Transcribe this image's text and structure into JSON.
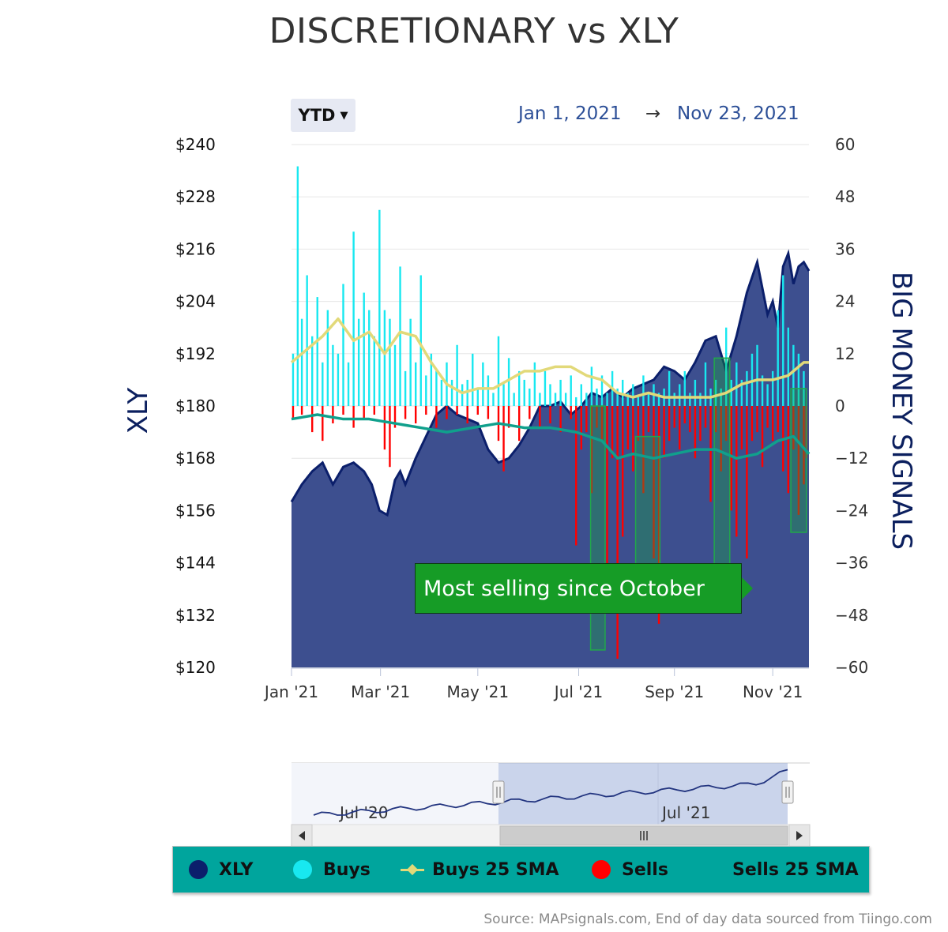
{
  "title": "DISCRETIONARY vs XLY",
  "range_selector": {
    "label": "YTD"
  },
  "date_range": {
    "from": "Jan 1, 2021",
    "arrow": "→",
    "to": "Nov 23, 2021"
  },
  "callout": {
    "text": "Most selling since October"
  },
  "navigator": {
    "labels": [
      "Jul '20",
      "Jul '21"
    ]
  },
  "legend": [
    {
      "label": "XLY",
      "color": "#0b1f6b"
    },
    {
      "label": "Buys",
      "color": "#18e8f0"
    },
    {
      "label": "Buys 25 SMA",
      "color": "#e2d979"
    },
    {
      "label": "Sells",
      "color": "#ff0000"
    },
    {
      "label": "Sells 25 SMA",
      "color": "#10a08c"
    }
  ],
  "source": "Source: MAPsignals.com, End of day data sourced from Tiingo.com",
  "chart_data": {
    "type": "area",
    "title": "DISCRETIONARY vs XLY",
    "x_ticks": [
      "Jan '21",
      "Mar '21",
      "May '21",
      "Jul '21",
      "Sep '21",
      "Nov '21"
    ],
    "left_axis": {
      "label": "XLY",
      "ticks": [
        "$240",
        "$228",
        "$216",
        "$204",
        "$192",
        "$180",
        "$168",
        "$156",
        "$144",
        "$132",
        "$120"
      ],
      "range": [
        120,
        240
      ]
    },
    "right_axis": {
      "label": "BIG MONEY SIGNALS",
      "ticks": [
        "60",
        "48",
        "36",
        "24",
        "12",
        "0",
        "−12",
        "−24",
        "−36",
        "−48",
        "−60"
      ],
      "range": [
        -60,
        60
      ]
    },
    "xly_price": {
      "name": "XLY",
      "x": [
        0,
        0.02,
        0.04,
        0.06,
        0.08,
        0.1,
        0.12,
        0.14,
        0.155,
        0.17,
        0.185,
        0.2,
        0.21,
        0.22,
        0.24,
        0.26,
        0.28,
        0.3,
        0.32,
        0.34,
        0.36,
        0.38,
        0.4,
        0.42,
        0.44,
        0.46,
        0.48,
        0.5,
        0.52,
        0.54,
        0.56,
        0.58,
        0.6,
        0.62,
        0.64,
        0.66,
        0.68,
        0.7,
        0.72,
        0.74,
        0.76,
        0.78,
        0.8,
        0.82,
        0.84,
        0.86,
        0.88,
        0.9,
        0.91,
        0.92,
        0.93,
        0.94,
        0.95,
        0.96,
        0.97,
        0.98,
        0.99,
        1.0
      ],
      "values": [
        158,
        162,
        165,
        167,
        162,
        166,
        167,
        165,
        162,
        156,
        155,
        163,
        165,
        162,
        168,
        173,
        178,
        180,
        178,
        177,
        176,
        170,
        167,
        168,
        171,
        175,
        180,
        180,
        181,
        178,
        180,
        183,
        182,
        184,
        182,
        184,
        185,
        186,
        189,
        188,
        186,
        190,
        195,
        196,
        188,
        196,
        206,
        213,
        207,
        201,
        204,
        198,
        212,
        215,
        208,
        212,
        213,
        211
      ]
    },
    "buys_25_sma": {
      "name": "Buys 25 SMA",
      "x": [
        0,
        0.03,
        0.06,
        0.09,
        0.12,
        0.15,
        0.18,
        0.21,
        0.24,
        0.27,
        0.3,
        0.33,
        0.36,
        0.39,
        0.42,
        0.45,
        0.48,
        0.51,
        0.54,
        0.57,
        0.6,
        0.63,
        0.66,
        0.69,
        0.72,
        0.75,
        0.78,
        0.81,
        0.84,
        0.87,
        0.9,
        0.93,
        0.96,
        0.99,
        1.0
      ],
      "values": [
        10,
        13,
        16,
        20,
        15,
        17,
        12,
        17,
        16,
        10,
        5,
        3,
        4,
        4,
        6,
        8,
        8,
        9,
        9,
        7,
        6,
        3,
        2,
        3,
        2,
        2,
        2,
        2,
        3,
        5,
        6,
        6,
        7,
        10,
        10
      ]
    },
    "sells_25_sma": {
      "name": "Sells 25 SMA",
      "x": [
        0,
        0.05,
        0.1,
        0.15,
        0.2,
        0.25,
        0.3,
        0.35,
        0.4,
        0.45,
        0.5,
        0.55,
        0.6,
        0.63,
        0.66,
        0.7,
        0.74,
        0.78,
        0.82,
        0.86,
        0.9,
        0.94,
        0.97,
        1.0
      ],
      "values": [
        -3,
        -2,
        -3,
        -3,
        -4,
        -5,
        -6,
        -5,
        -4,
        -5,
        -5,
        -6,
        -8,
        -12,
        -11,
        -12,
        -11,
        -10,
        -10,
        -12,
        -11,
        -8,
        -7,
        -11
      ]
    },
    "buys": {
      "name": "Buys",
      "x": [
        0.003,
        0.012,
        0.02,
        0.03,
        0.04,
        0.05,
        0.06,
        0.07,
        0.08,
        0.09,
        0.1,
        0.11,
        0.12,
        0.13,
        0.14,
        0.15,
        0.16,
        0.17,
        0.18,
        0.19,
        0.2,
        0.21,
        0.22,
        0.23,
        0.24,
        0.25,
        0.26,
        0.27,
        0.28,
        0.29,
        0.3,
        0.31,
        0.32,
        0.33,
        0.34,
        0.35,
        0.36,
        0.37,
        0.38,
        0.39,
        0.4,
        0.41,
        0.42,
        0.43,
        0.44,
        0.45,
        0.46,
        0.47,
        0.48,
        0.49,
        0.5,
        0.51,
        0.52,
        0.53,
        0.54,
        0.55,
        0.56,
        0.57,
        0.58,
        0.59,
        0.6,
        0.61,
        0.62,
        0.63,
        0.64,
        0.65,
        0.66,
        0.67,
        0.68,
        0.69,
        0.7,
        0.71,
        0.72,
        0.73,
        0.74,
        0.75,
        0.76,
        0.77,
        0.78,
        0.79,
        0.8,
        0.81,
        0.82,
        0.83,
        0.84,
        0.85,
        0.86,
        0.87,
        0.88,
        0.89,
        0.9,
        0.91,
        0.92,
        0.93,
        0.94,
        0.95,
        0.96,
        0.97,
        0.98,
        0.99
      ],
      "values": [
        12,
        55,
        20,
        30,
        16,
        25,
        10,
        22,
        14,
        12,
        28,
        10,
        40,
        20,
        26,
        22,
        16,
        45,
        22,
        20,
        14,
        32,
        8,
        20,
        10,
        30,
        7,
        12,
        8,
        6,
        10,
        6,
        14,
        5,
        6,
        12,
        4,
        10,
        7,
        3,
        16,
        5,
        11,
        3,
        8,
        6,
        4,
        10,
        3,
        8,
        5,
        3,
        6,
        3,
        7,
        2,
        5,
        3,
        9,
        4,
        7,
        3,
        8,
        4,
        6,
        3,
        5,
        2,
        7,
        3,
        5,
        3,
        4,
        8,
        3,
        5,
        8,
        3,
        6,
        3,
        10,
        4,
        6,
        4,
        18,
        6,
        10,
        6,
        8,
        12,
        14,
        7,
        5,
        8,
        22,
        30,
        18,
        14,
        12,
        8
      ]
    },
    "sells": {
      "name": "Sells",
      "x": [
        0.003,
        0.02,
        0.04,
        0.06,
        0.08,
        0.1,
        0.12,
        0.14,
        0.16,
        0.18,
        0.19,
        0.2,
        0.22,
        0.24,
        0.26,
        0.28,
        0.3,
        0.32,
        0.34,
        0.36,
        0.38,
        0.4,
        0.41,
        0.42,
        0.44,
        0.46,
        0.48,
        0.5,
        0.52,
        0.54,
        0.55,
        0.56,
        0.57,
        0.58,
        0.59,
        0.6,
        0.61,
        0.62,
        0.63,
        0.64,
        0.65,
        0.66,
        0.67,
        0.68,
        0.69,
        0.7,
        0.71,
        0.72,
        0.73,
        0.74,
        0.75,
        0.76,
        0.77,
        0.78,
        0.79,
        0.8,
        0.81,
        0.82,
        0.83,
        0.84,
        0.85,
        0.86,
        0.87,
        0.88,
        0.89,
        0.9,
        0.91,
        0.92,
        0.93,
        0.94,
        0.95,
        0.96,
        0.97,
        0.98,
        0.99,
        0.995
      ],
      "values": [
        -3,
        -2,
        -6,
        -8,
        -4,
        -2,
        -5,
        -3,
        -2,
        -10,
        -14,
        -5,
        -3,
        -4,
        -2,
        -5,
        -3,
        -2,
        -4,
        -2,
        -3,
        -8,
        -15,
        -5,
        -8,
        -3,
        -5,
        -4,
        -6,
        -3,
        -32,
        -10,
        -6,
        -20,
        -5,
        -8,
        -45,
        -12,
        -58,
        -30,
        -10,
        -15,
        -8,
        -20,
        -6,
        -35,
        -50,
        -12,
        -8,
        -5,
        -10,
        -4,
        -6,
        -12,
        -8,
        -5,
        -22,
        -6,
        -15,
        -8,
        -24,
        -30,
        -10,
        -35,
        -8,
        -6,
        -14,
        -5,
        -8,
        -6,
        -15,
        -20,
        -10,
        -25,
        -18,
        -12
      ]
    },
    "highlight_boxes": [
      {
        "x0": 0.578,
        "x1": 0.606,
        "y0": -56,
        "y1": 0
      },
      {
        "x0": 0.665,
        "x1": 0.712,
        "y0": -38,
        "y1": -7
      },
      {
        "x0": 0.817,
        "x1": 0.847,
        "y0": -37,
        "y1": 11
      },
      {
        "x0": 0.965,
        "x1": 0.995,
        "y0": -29,
        "y1": 4
      }
    ]
  }
}
